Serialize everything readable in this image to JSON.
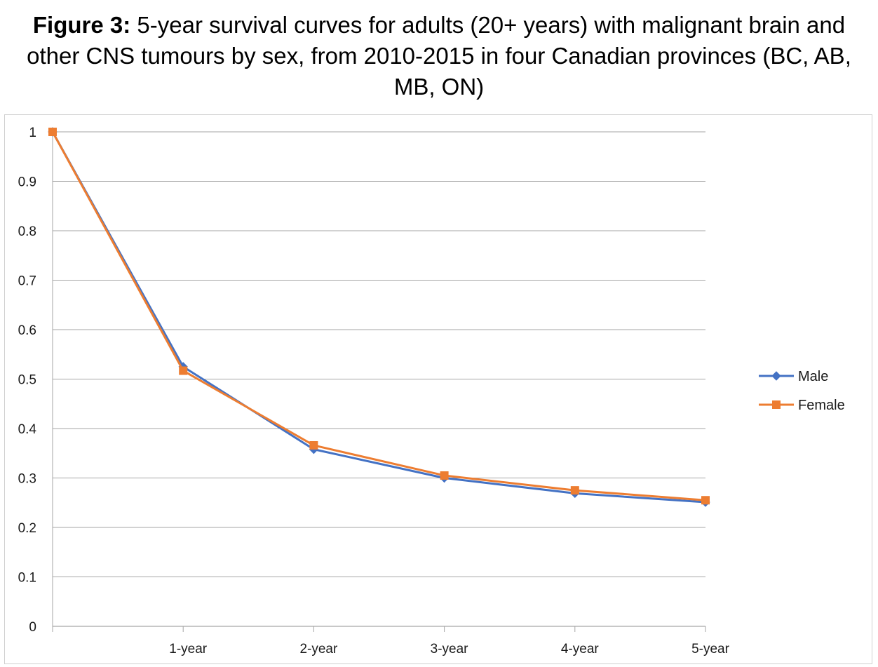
{
  "title": {
    "lead": "Figure 3:",
    "text": " 5-year survival curves for adults (20+ years) with malignant brain and other CNS tumours by sex, from 2010-2015 in four Canadian provinces (BC, AB, MB, ON)"
  },
  "chart_data": {
    "type": "line",
    "categories": [
      "",
      "1-year",
      "2-year",
      "3-year",
      "4-year",
      "5-year"
    ],
    "series": [
      {
        "name": "Male",
        "color": "#4472c4",
        "marker": "diamond",
        "values": [
          1.0,
          0.525,
          0.358,
          0.3,
          0.269,
          0.251
        ]
      },
      {
        "name": "Female",
        "color": "#ed7d31",
        "marker": "square",
        "values": [
          1.0,
          0.517,
          0.366,
          0.305,
          0.275,
          0.255
        ]
      }
    ],
    "ylim": [
      0,
      1
    ],
    "yticks": [
      "0",
      "0.1",
      "0.2",
      "0.3",
      "0.4",
      "0.5",
      "0.6",
      "0.7",
      "0.8",
      "0.9",
      "1"
    ],
    "grid": true,
    "legend_position": "right"
  }
}
